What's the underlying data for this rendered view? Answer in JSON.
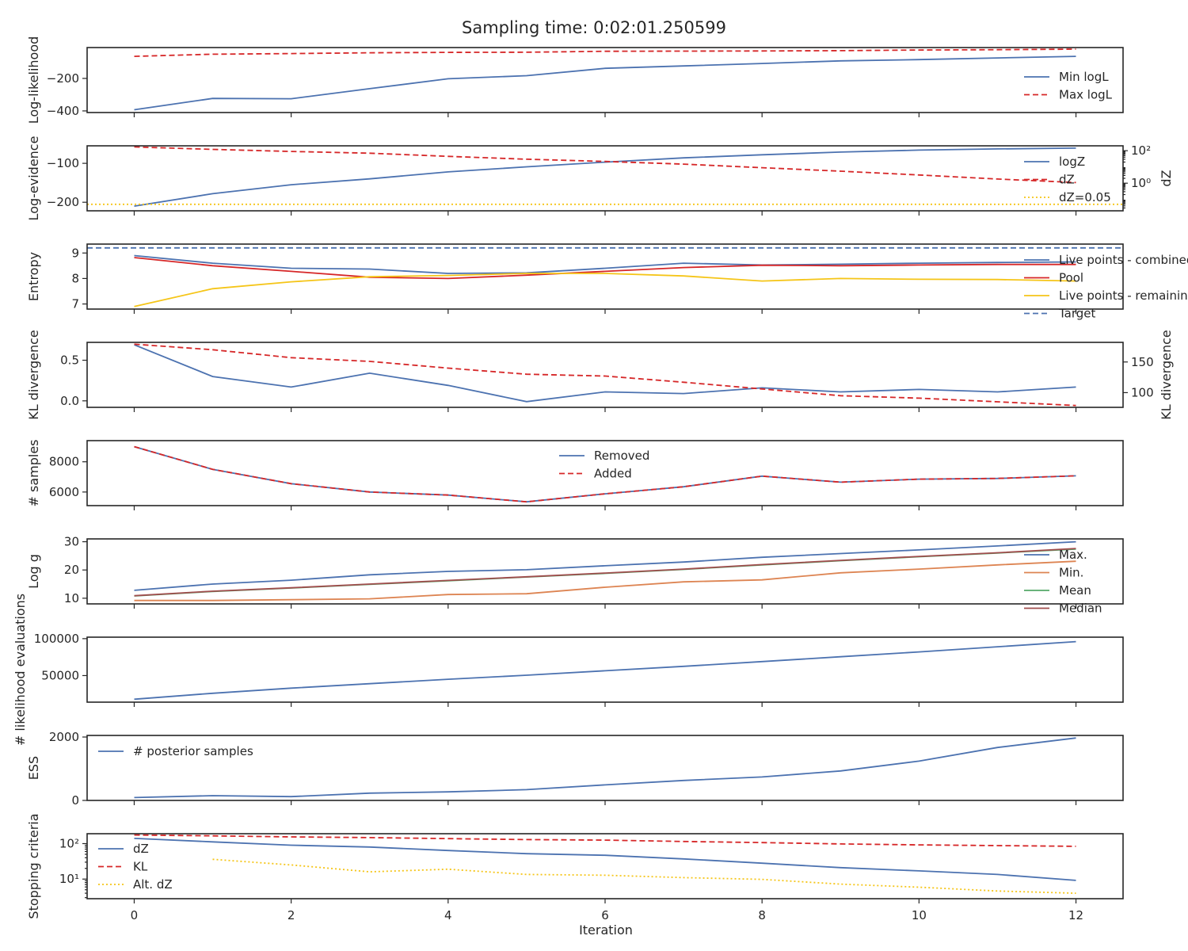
{
  "title": "Sampling time: 0:02:01.250599",
  "colors": {
    "blue": "#4c72b0",
    "red": "#d62728",
    "yellow": "#f5c518",
    "orange": "#dd8452",
    "green": "#55a868",
    "brown": "#a04d4d",
    "axis": "#262626"
  },
  "chart_data": {
    "type": "line",
    "xlabel": "Iteration",
    "xlim": [
      -0.6,
      12.6
    ],
    "xticks": [
      0,
      2,
      4,
      6,
      8,
      10,
      12
    ],
    "panels": [
      {
        "name": "loglikelihood",
        "ylabel": "Log-likelihood",
        "ylim": [
          -410,
          -10
        ],
        "yticks": [
          -400,
          -200
        ],
        "yticklabels": [
          "−400",
          "−200"
        ],
        "legend": "right",
        "series": [
          {
            "name": "Min logL",
            "style": "solid",
            "color": "#4c72b0",
            "x": [
              0,
              1,
              2,
              3,
              4,
              5,
              6,
              7,
              8,
              9,
              10,
              11,
              12
            ],
            "values": [
              -393,
              -323,
              -325,
              -263,
              -202,
              -183,
              -138,
              -123,
              -108,
              -92,
              -84,
              -74,
              -64
            ]
          },
          {
            "name": "Max logL",
            "style": "dashed",
            "color": "#d62728",
            "x": [
              0,
              1,
              2,
              3,
              4,
              5,
              6,
              7,
              8,
              9,
              10,
              11,
              12
            ],
            "values": [
              -64,
              -51,
              -47,
              -42,
              -40,
              -39,
              -33,
              -32,
              -31,
              -29,
              -25,
              -23,
              -20
            ]
          }
        ]
      },
      {
        "name": "logevidence",
        "ylabel": "Log-evidence",
        "ylim": [
          -222,
          -55
        ],
        "yticks": [
          -200,
          -100
        ],
        "yticklabels": [
          "−200",
          "−100"
        ],
        "legend": "right",
        "series": [
          {
            "name": "logZ",
            "style": "solid",
            "color": "#4c72b0",
            "x": [
              0,
              1,
              2,
              3,
              4,
              5,
              6,
              7,
              8,
              9,
              10,
              11,
              12
            ],
            "values": [
              -210,
              -178,
              -155,
              -140,
              -122,
              -109,
              -97,
              -86,
              -78,
              -71,
              -66,
              -63,
              -61
            ]
          }
        ],
        "right_axis": {
          "ylabel": "dZ",
          "scale": "log",
          "ylim": [
            0.02,
            200
          ],
          "yticks": [
            1,
            100
          ],
          "yticklabels": [
            "10⁰",
            "10²"
          ],
          "series": [
            {
              "name": "dZ",
              "style": "dashed",
              "color": "#d62728",
              "x": [
                0,
                1,
                2,
                3,
                4,
                5,
                6,
                7,
                8,
                9,
                10,
                11,
                12
              ],
              "values": [
                170,
                120,
                90,
                70,
                45,
                30,
                22,
                15,
                9,
                5.5,
                3.2,
                1.8,
                1.1
              ]
            },
            {
              "name": "dZ=0.05",
              "style": "dotted",
              "color": "#f5c518",
              "x": [
                -0.6,
                12.6
              ],
              "values": [
                0.05,
                0.05
              ]
            }
          ]
        }
      },
      {
        "name": "entropy",
        "ylabel": "Entropy",
        "ylim": [
          6.8,
          9.35
        ],
        "yticks": [
          7,
          8,
          9
        ],
        "yticklabels": [
          "7",
          "8",
          "9"
        ],
        "legend": "right",
        "series": [
          {
            "name": "Live points - combined",
            "style": "solid",
            "color": "#4c72b0",
            "x": [
              0,
              1,
              2,
              3,
              4,
              5,
              6,
              7,
              8,
              9,
              10,
              11,
              12
            ],
            "values": [
              8.9,
              8.6,
              8.4,
              8.37,
              8.2,
              8.22,
              8.4,
              8.6,
              8.53,
              8.56,
              8.6,
              8.63,
              8.65
            ]
          },
          {
            "name": "Pool",
            "style": "solid",
            "color": "#d62728",
            "x": [
              0,
              1,
              2,
              3,
              4,
              5,
              6,
              7,
              8,
              9,
              10,
              11,
              12
            ],
            "values": [
              8.82,
              8.5,
              8.28,
              8.05,
              8.0,
              8.13,
              8.28,
              8.43,
              8.52,
              8.5,
              8.53,
              8.55,
              8.55
            ]
          },
          {
            "name": "Live points - remaining",
            "style": "solid",
            "color": "#f5c518",
            "x": [
              0,
              1,
              2,
              3,
              4,
              5,
              6,
              7,
              8,
              9,
              10,
              11,
              12
            ],
            "values": [
              6.9,
              7.6,
              7.87,
              8.07,
              8.12,
              8.2,
              8.2,
              8.1,
              7.9,
              8.0,
              7.97,
              7.96,
              7.9
            ]
          },
          {
            "name": "Target",
            "style": "dashed",
            "color": "#4c72b0",
            "x": [
              -0.6,
              12.6
            ],
            "values": [
              9.2,
              9.2
            ]
          }
        ]
      },
      {
        "name": "kl",
        "ylabel": "KL divergence",
        "ylim": [
          -0.08,
          0.72
        ],
        "yticks": [
          0.0,
          0.5
        ],
        "yticklabels": [
          "0.0",
          "0.5"
        ],
        "legend": "none",
        "series": [
          {
            "name": "",
            "style": "solid",
            "color": "#4c72b0",
            "x": [
              0,
              1,
              2,
              3,
              4,
              5,
              6,
              7,
              8,
              9,
              10,
              11,
              12
            ],
            "values": [
              0.69,
              0.3,
              0.17,
              0.34,
              0.19,
              -0.01,
              0.11,
              0.09,
              0.16,
              0.11,
              0.14,
              0.11,
              0.17
            ]
          }
        ],
        "right_axis": {
          "ylabel": "KL divergence",
          "scale": "linear",
          "ylim": [
            76,
            182
          ],
          "yticks": [
            100,
            150
          ],
          "yticklabels": [
            "100",
            "150"
          ],
          "series": [
            {
              "name": "",
              "style": "dashed",
              "color": "#d62728",
              "x": [
                0,
                1,
                2,
                3,
                4,
                5,
                6,
                7,
                8,
                9,
                10,
                11,
                12
              ],
              "values": [
                179,
                170,
                157,
                151,
                140,
                130,
                127,
                117,
                106,
                95,
                91,
                85,
                79
              ]
            }
          ]
        }
      },
      {
        "name": "samples",
        "ylabel": "# samples",
        "ylim": [
          5100,
          9400
        ],
        "yticks": [
          6000,
          8000
        ],
        "yticklabels": [
          "6000",
          "8000"
        ],
        "legend": "top-center",
        "series": [
          {
            "name": "Removed",
            "style": "solid",
            "color": "#4c72b0",
            "x": [
              0,
              1,
              2,
              3,
              4,
              5,
              6,
              7,
              8,
              9,
              10,
              11,
              12
            ],
            "values": [
              9000,
              7500,
              6550,
              6000,
              5800,
              5350,
              5880,
              6350,
              7050,
              6650,
              6850,
              6900,
              7070
            ]
          },
          {
            "name": "Added",
            "style": "dashed",
            "color": "#d62728",
            "x": [
              0,
              1,
              2,
              3,
              4,
              5,
              6,
              7,
              8,
              9,
              10,
              11,
              12
            ],
            "values": [
              9000,
              7500,
              6550,
              6000,
              5800,
              5350,
              5880,
              6350,
              7050,
              6650,
              6850,
              6900,
              7070
            ]
          }
        ]
      },
      {
        "name": "logg",
        "ylabel": "Log g",
        "ylim": [
          8,
          31
        ],
        "yticks": [
          10,
          20,
          30
        ],
        "yticklabels": [
          "10",
          "20",
          "30"
        ],
        "legend": "right",
        "series": [
          {
            "name": "Max.",
            "style": "solid",
            "color": "#4c72b0",
            "x": [
              0,
              1,
              2,
              3,
              4,
              5,
              6,
              7,
              8,
              9,
              10,
              11,
              12
            ],
            "values": [
              12.8,
              15,
              16.4,
              18.3,
              19.5,
              20.1,
              21.5,
              22.8,
              24.5,
              25.8,
              27.1,
              28.5,
              30
            ]
          },
          {
            "name": "Min.",
            "style": "solid",
            "color": "#dd8452",
            "x": [
              0,
              1,
              2,
              3,
              4,
              5,
              6,
              7,
              8,
              9,
              10,
              11,
              12
            ],
            "values": [
              9.2,
              9.2,
              9.5,
              9.8,
              11.3,
              11.6,
              13.9,
              15.8,
              16.5,
              19,
              20.3,
              21.8,
              23.1
            ]
          },
          {
            "name": "Mean",
            "style": "solid",
            "color": "#55a868",
            "x": [
              0,
              1,
              2,
              3,
              4,
              5,
              6,
              7,
              8,
              9,
              10,
              11,
              12
            ],
            "values": [
              10.8,
              12.4,
              13.6,
              14.9,
              16.2,
              17.5,
              18.8,
              20.2,
              21.8,
              23.3,
              24.7,
              26,
              27.4
            ]
          },
          {
            "name": "Median",
            "style": "solid",
            "color": "#a04d4d",
            "x": [
              0,
              1,
              2,
              3,
              4,
              5,
              6,
              7,
              8,
              9,
              10,
              11,
              12
            ],
            "values": [
              10.9,
              12.5,
              13.7,
              15,
              16.3,
              17.6,
              18.9,
              20.3,
              21.9,
              23.4,
              24.8,
              26.1,
              27.6
            ]
          }
        ]
      },
      {
        "name": "evaluations",
        "ylabel": "",
        "ylim": [
          14000,
          102000
        ],
        "yticks": [
          50000,
          100000
        ],
        "yticklabels": [
          "50000",
          "100000"
        ],
        "legend": "none",
        "series": [
          {
            "name": "",
            "style": "solid",
            "color": "#4c72b0",
            "x": [
              0,
              1,
              2,
              3,
              4,
              5,
              6,
              7,
              8,
              9,
              10,
              11,
              12
            ],
            "values": [
              18000,
              26000,
              33000,
              39000,
              45000,
              50500,
              56500,
              62500,
              69000,
              75500,
              82000,
              89000,
              96000
            ]
          }
        ]
      },
      {
        "name": "ess",
        "ylabel": "ESS",
        "ylim": [
          0,
          2050
        ],
        "yticks": [
          0,
          2000
        ],
        "yticklabels": [
          "0",
          "2000"
        ],
        "legend": "top-left",
        "series": [
          {
            "name": "# posterior samples",
            "style": "solid",
            "color": "#4c72b0",
            "x": [
              0,
              1,
              2,
              3,
              4,
              5,
              6,
              7,
              8,
              9,
              10,
              11,
              12
            ],
            "values": [
              90,
              150,
              120,
              230,
              270,
              340,
              490,
              630,
              740,
              930,
              1240,
              1670,
              1970
            ]
          }
        ]
      },
      {
        "name": "stopping",
        "ylabel": "Stopping criteria",
        "scale": "log",
        "ylim": [
          2.8,
          190
        ],
        "yticks": [
          10,
          100
        ],
        "yticklabels": [
          "10¹",
          "10²"
        ],
        "legend": "left",
        "series": [
          {
            "name": "dZ",
            "style": "solid",
            "color": "#4c72b0",
            "x": [
              0,
              1,
              2,
              3,
              4,
              5,
              6,
              7,
              8,
              9,
              10,
              11,
              12
            ],
            "values": [
              140,
              112,
              90,
              80,
              64,
              52,
              47,
              37,
              28,
              21,
              17,
              13.5,
              9.2
            ]
          },
          {
            "name": "KL",
            "style": "dashed",
            "color": "#d62728",
            "x": [
              0,
              1,
              2,
              3,
              4,
              5,
              6,
              7,
              8,
              9,
              10,
              11,
              12
            ],
            "values": [
              175,
              165,
              155,
              148,
              138,
              130,
              125,
              115,
              107,
              98,
              92,
              88,
              84
            ]
          },
          {
            "name": "Alt. dZ",
            "style": "dotted",
            "color": "#f5c518",
            "x": [
              1,
              2,
              3,
              4,
              5,
              6,
              7,
              8,
              9,
              10,
              11,
              12
            ],
            "values": [
              36,
              25,
              16,
              19,
              13.5,
              12.8,
              11,
              9.8,
              7.2,
              5.9,
              4.6,
              4
            ]
          }
        ]
      }
    ],
    "shared_ylabel": "# likelihood evaluations"
  }
}
